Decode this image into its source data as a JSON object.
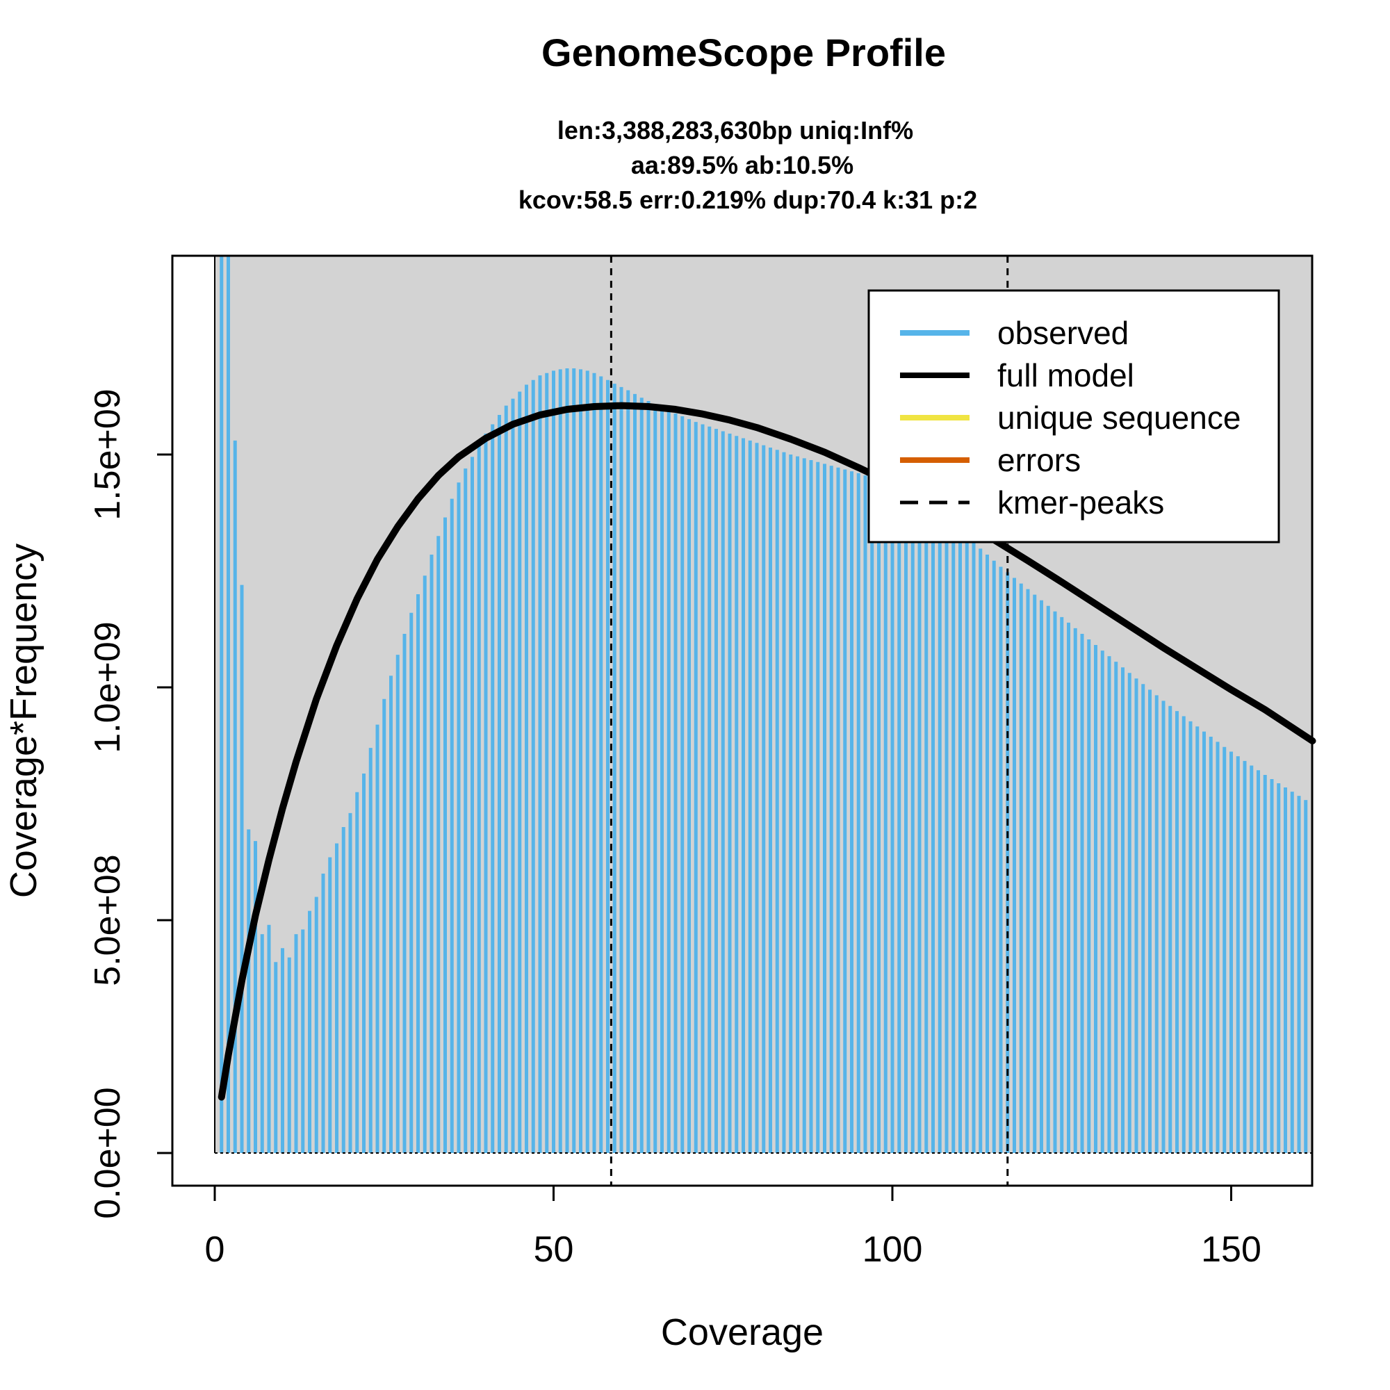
{
  "chart_data": {
    "type": "bar",
    "title": "GenomeScope Profile",
    "subtitle_lines": [
      "len:3,388,283,630bp uniq:Inf%",
      "aa:89.5% ab:10.5%",
      "kcov:58.5 err:0.219%  dup:70.4  k:31 p:2"
    ],
    "xlabel": "Coverage",
    "ylabel": "Coverage*Frequency",
    "xlim": [
      0,
      162
    ],
    "ylim": [
      0,
      1930000000
    ],
    "xticks": [
      {
        "value": 0,
        "label": "0"
      },
      {
        "value": 50,
        "label": "50"
      },
      {
        "value": 100,
        "label": "100"
      },
      {
        "value": 150,
        "label": "150"
      }
    ],
    "yticks": [
      {
        "value": 0,
        "label": "0.0e+00"
      },
      {
        "value": 500000000,
        "label": "5.0e+08"
      },
      {
        "value": 1000000000,
        "label": "1.0e+09"
      },
      {
        "value": 1500000000,
        "label": "1.5e+09"
      }
    ],
    "colors": {
      "observed": "#56B4E9",
      "full_model": "#000000",
      "unique_sequence": "#F0E442",
      "errors": "#D55E00",
      "kmer_peaks": "#000000",
      "background": "#D3D3D3"
    },
    "legend": {
      "position": "top-right",
      "entries": [
        {
          "label": "observed",
          "key": "observed",
          "style": "solid"
        },
        {
          "label": "full model",
          "key": "full_model",
          "style": "solid"
        },
        {
          "label": "unique sequence",
          "key": "unique_sequence",
          "style": "solid"
        },
        {
          "label": "errors",
          "key": "errors",
          "style": "solid"
        },
        {
          "label": "kmer-peaks",
          "key": "kmer_peaks",
          "style": "dashed"
        }
      ]
    },
    "kmer_peaks": [
      58.5,
      117
    ],
    "observed": {
      "x_start": 1,
      "values": [
        2700000000,
        2150000000,
        1530000000,
        1220000000,
        695000000,
        670000000,
        470000000,
        490000000,
        410000000,
        440000000,
        420000000,
        470000000,
        480000000,
        520000000,
        550000000,
        600000000,
        635000000,
        665000000,
        700000000,
        730000000,
        775000000,
        815000000,
        870000000,
        920000000,
        975000000,
        1025000000,
        1070000000,
        1115000000,
        1160000000,
        1200000000,
        1240000000,
        1285000000,
        1325000000,
        1365000000,
        1405000000,
        1440000000,
        1470000000,
        1495000000,
        1520000000,
        1545000000,
        1565000000,
        1585000000,
        1605000000,
        1620000000,
        1635000000,
        1650000000,
        1660000000,
        1670000000,
        1675000000,
        1680000000,
        1683000000,
        1685000000,
        1685000000,
        1683000000,
        1680000000,
        1675000000,
        1668000000,
        1660000000,
        1652000000,
        1645000000,
        1638000000,
        1630000000,
        1622000000,
        1615000000,
        1608000000,
        1600000000,
        1594000000,
        1588000000,
        1582000000,
        1576000000,
        1570000000,
        1565000000,
        1560000000,
        1555000000,
        1550000000,
        1545000000,
        1540000000,
        1535000000,
        1530000000,
        1525000000,
        1520000000,
        1515000000,
        1510000000,
        1505000000,
        1500000000,
        1496000000,
        1492000000,
        1488000000,
        1484000000,
        1480000000,
        1476000000,
        1472000000,
        1468000000,
        1464000000,
        1460000000,
        1455000000,
        1450000000,
        1444000000,
        1438000000,
        1431000000,
        1424000000,
        1416000000,
        1408000000,
        1399000000,
        1390000000,
        1380000000,
        1370000000,
        1359000000,
        1348000000,
        1336000000,
        1324000000,
        1311000000,
        1298000000,
        1285000000,
        1272000000,
        1259000000,
        1247000000,
        1235000000,
        1223000000,
        1211000000,
        1199000000,
        1187000000,
        1175000000,
        1163000000,
        1151000000,
        1139000000,
        1127000000,
        1115000000,
        1103000000,
        1091000000,
        1079000000,
        1067000000,
        1055000000,
        1043000000,
        1031000000,
        1019000000,
        1007000000,
        995000000,
        983000000,
        971000000,
        960000000,
        949000000,
        938000000,
        927000000,
        916000000,
        905000000,
        894000000,
        883000000,
        872000000,
        862000000,
        852000000,
        842000000,
        832000000,
        822000000,
        812000000,
        803000000,
        794000000,
        785000000,
        776000000,
        767000000,
        758000000,
        749000000,
        741000000
      ]
    },
    "full_model": {
      "x": [
        1,
        2,
        4,
        6,
        8,
        10,
        12,
        15,
        18,
        21,
        24,
        27,
        30,
        33,
        36,
        40,
        44,
        48,
        52,
        56,
        60,
        64,
        68,
        72,
        76,
        80,
        85,
        90,
        95,
        100,
        105,
        110,
        115,
        120,
        125,
        130,
        135,
        140,
        145,
        150,
        155,
        162
      ],
      "values": [
        120000000,
        210000000,
        370000000,
        510000000,
        630000000,
        740000000,
        840000000,
        975000000,
        1090000000,
        1190000000,
        1275000000,
        1345000000,
        1405000000,
        1455000000,
        1495000000,
        1535000000,
        1565000000,
        1585000000,
        1597000000,
        1603000000,
        1605000000,
        1603000000,
        1597000000,
        1587000000,
        1574000000,
        1558000000,
        1533000000,
        1505000000,
        1472000000,
        1437000000,
        1399000000,
        1359000000,
        1317000000,
        1272000000,
        1226000000,
        1179000000,
        1132000000,
        1085000000,
        1040000000,
        995000000,
        952000000,
        885000000
      ]
    }
  }
}
